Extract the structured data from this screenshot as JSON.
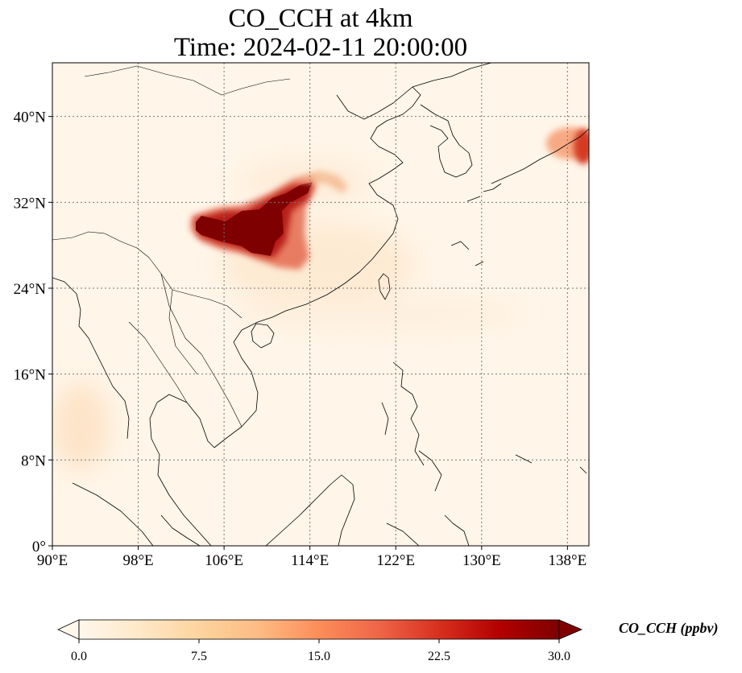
{
  "title": {
    "line1": "CO_CCH at 4km",
    "line2": "Time: 2024-02-11 20:00:00"
  },
  "map": {
    "extent": {
      "lon_min": 90,
      "lon_max": 140,
      "lat_min": 0,
      "lat_max": 45
    },
    "gridlines": "dotted",
    "x_ticks": [
      {
        "value": 90,
        "label": "90°E"
      },
      {
        "value": 98,
        "label": "98°E"
      },
      {
        "value": 106,
        "label": "106°E"
      },
      {
        "value": 114,
        "label": "114°E"
      },
      {
        "value": 122,
        "label": "122°E"
      },
      {
        "value": 130,
        "label": "130°E"
      },
      {
        "value": 138,
        "label": "138°E"
      }
    ],
    "y_ticks": [
      {
        "value": 0,
        "label": "0°"
      },
      {
        "value": 8,
        "label": "8°N"
      },
      {
        "value": 16,
        "label": "16°N"
      },
      {
        "value": 24,
        "label": "24°N"
      },
      {
        "value": 32,
        "label": "32°N"
      },
      {
        "value": 40,
        "label": "40°N"
      }
    ],
    "background_color": "#fff5e8",
    "plumes": [
      {
        "lon": 104.5,
        "lat": 29.5,
        "value": 30
      },
      {
        "lon": 107.5,
        "lat": 29.0,
        "value": 30
      },
      {
        "lon": 109.5,
        "lat": 30.0,
        "value": 29
      },
      {
        "lon": 111.0,
        "lat": 29.5,
        "value": 27
      },
      {
        "lon": 112.5,
        "lat": 32.5,
        "value": 26
      },
      {
        "lon": 114.0,
        "lat": 33.8,
        "value": 24
      },
      {
        "lon": 111.5,
        "lat": 27.5,
        "value": 20
      },
      {
        "lon": 109.0,
        "lat": 27.0,
        "value": 16
      },
      {
        "lon": 113.0,
        "lat": 28.5,
        "value": 14
      },
      {
        "lon": 139.5,
        "lat": 36.5,
        "value": 22
      },
      {
        "lon": 138.0,
        "lat": 37.5,
        "value": 10
      },
      {
        "lon": 91.5,
        "lat": 12.0,
        "value": 4
      }
    ]
  },
  "colorbar": {
    "min": 0,
    "max": 30,
    "ticks": [
      {
        "value": 0,
        "label": "0.0"
      },
      {
        "value": 7.5,
        "label": "7.5"
      },
      {
        "value": 15,
        "label": "15.0"
      },
      {
        "value": 22.5,
        "label": "22.5"
      },
      {
        "value": 30,
        "label": "30.0"
      }
    ],
    "label": "CO_CCH (ppbv)",
    "colormap": [
      "#fff7ec",
      "#fee8c8",
      "#fdd49e",
      "#fdbb84",
      "#fc8d59",
      "#ef6548",
      "#d7301f",
      "#b30000",
      "#7f0000"
    ]
  }
}
